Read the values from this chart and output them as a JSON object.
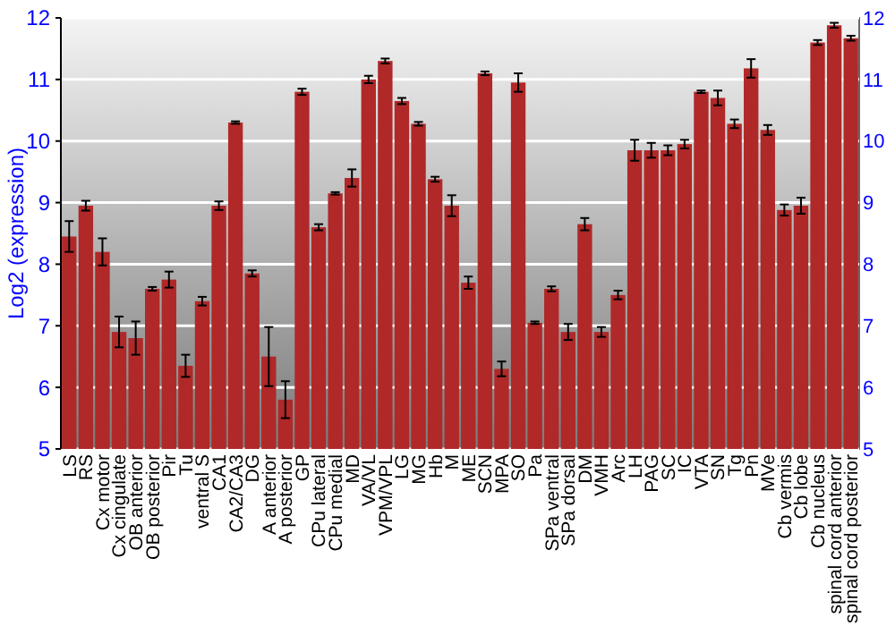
{
  "chart_data": {
    "type": "bar",
    "ylabel": "Log2 (expression)",
    "categories": [
      "LS",
      "RS",
      "Cx motor",
      "Cx cingulate",
      "OB anterior",
      "OB posterior",
      "Pir",
      "Tu",
      "ventral S",
      "CA1",
      "CA2/CA3",
      "DG",
      "A anterior",
      "A posterior",
      "GP",
      "CPu lateral",
      "CPu medial",
      "MD",
      "VA/VL",
      "VPM/VPL",
      "LG",
      "MG",
      "Hb",
      "M",
      "ME",
      "SCN",
      "MPA",
      "SO",
      "Pa",
      "SPa ventral",
      "SPa dorsal",
      "DM",
      "VMH",
      "Arc",
      "LH",
      "PAG",
      "SC",
      "IC",
      "VTA",
      "SN",
      "Tg",
      "Pn",
      "MVe",
      "Cb vermis",
      "Cb lobe",
      "Cb nucleus",
      "spinal cord anterior",
      "spinal cord posterior"
    ],
    "values": [
      8.45,
      8.95,
      8.2,
      6.9,
      6.8,
      7.6,
      7.75,
      6.35,
      7.4,
      8.95,
      10.3,
      7.85,
      6.5,
      5.8,
      10.8,
      8.6,
      9.15,
      9.4,
      11.0,
      11.3,
      10.65,
      10.28,
      9.38,
      8.95,
      7.7,
      11.1,
      6.3,
      10.95,
      7.05,
      7.6,
      6.9,
      8.65,
      6.9,
      7.5,
      9.85,
      9.85,
      9.85,
      9.95,
      10.8,
      10.7,
      10.28,
      11.18,
      10.18,
      8.88,
      8.95,
      11.6,
      11.88,
      11.67
    ],
    "errors": [
      0.25,
      0.08,
      0.22,
      0.25,
      0.27,
      0.03,
      0.13,
      0.18,
      0.07,
      0.07,
      0.02,
      0.05,
      0.48,
      0.3,
      0.05,
      0.05,
      0.02,
      0.14,
      0.06,
      0.04,
      0.05,
      0.03,
      0.04,
      0.17,
      0.1,
      0.03,
      0.12,
      0.15,
      0.02,
      0.04,
      0.13,
      0.1,
      0.08,
      0.07,
      0.17,
      0.12,
      0.08,
      0.07,
      0.02,
      0.12,
      0.07,
      0.15,
      0.08,
      0.09,
      0.13,
      0.04,
      0.04,
      0.04
    ],
    "color": "#b02828",
    "ylim": [
      5,
      12
    ],
    "yticks": [
      5,
      6,
      7,
      8,
      9,
      10,
      11,
      12
    ],
    "y2lim": [
      5,
      12
    ],
    "y2ticks": [
      5,
      6,
      7,
      8,
      9,
      10,
      11,
      12
    ],
    "grid": "y"
  }
}
